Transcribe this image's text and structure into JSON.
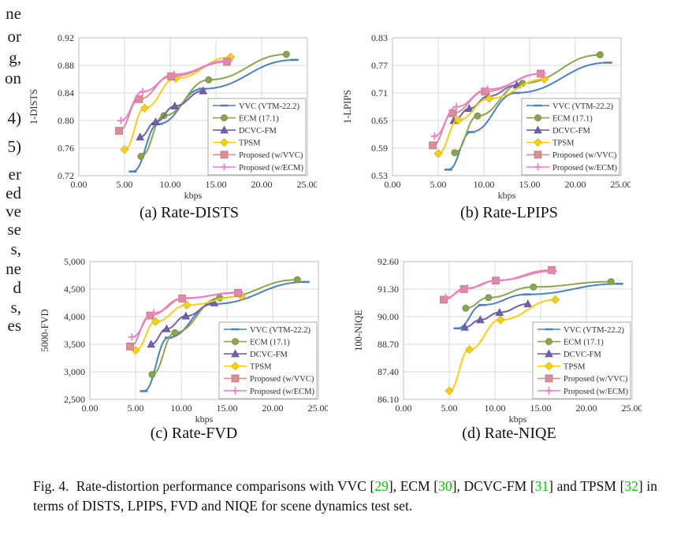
{
  "margin_fragments": [
    {
      "text": "ne",
      "y": 7
    },
    {
      "text": "or",
      "y": 36
    },
    {
      "text": "g,",
      "y": 63
    },
    {
      "text": "on",
      "y": 89
    },
    {
      "text": "4)",
      "y": 140
    },
    {
      "text": "5)",
      "y": 176
    },
    {
      "text": "er",
      "y": 211
    },
    {
      "text": "ed",
      "y": 235
    },
    {
      "text": "ve",
      "y": 258
    },
    {
      "text": "se",
      "y": 281
    },
    {
      "text": "s,",
      "y": 306
    },
    {
      "text": "ne",
      "y": 331
    },
    {
      "text": "d",
      "y": 355
    },
    {
      "text": "s,",
      "y": 380
    },
    {
      "text": "es",
      "y": 403
    }
  ],
  "figure_caption": {
    "cite_color": "#00cc00",
    "segments": [
      {
        "t": "Fig. 4.  Rate-distortion performance comparisons with VVC [",
        "c": "text"
      },
      {
        "t": "29",
        "c": "cite"
      },
      {
        "t": "], ECM [",
        "c": "text"
      },
      {
        "t": "30",
        "c": "cite"
      },
      {
        "t": "], DCVC-FM [",
        "c": "text"
      },
      {
        "t": "31",
        "c": "cite"
      },
      {
        "t": "] and TPSM [",
        "c": "text"
      },
      {
        "t": "32",
        "c": "cite"
      },
      {
        "t": "] in terms of DISTS, LPIPS, FVD and NIQE for scene dynamics test set.",
        "c": "text"
      }
    ]
  },
  "chart_data": [
    {
      "type": "line",
      "caption": "(a) Rate-DISTS",
      "xlabel": "kbps",
      "ylabel": "1-DISTS",
      "xlim": [
        0,
        25
      ],
      "ylim": [
        0.72,
        0.92
      ],
      "grid": true,
      "legend_position": "lower-right",
      "xticks": [
        {
          "v": 0,
          "l": "0.00"
        },
        {
          "v": 5,
          "l": "5.00"
        },
        {
          "v": 10,
          "l": "10.00"
        },
        {
          "v": 15,
          "l": "15.00"
        },
        {
          "v": 20,
          "l": "20.00"
        },
        {
          "v": 25,
          "l": "25.00"
        }
      ],
      "yticks": [
        {
          "v": 0.72,
          "l": "0.72"
        },
        {
          "v": 0.76,
          "l": "0.76"
        },
        {
          "v": 0.8,
          "l": "0.80"
        },
        {
          "v": 0.84,
          "l": "0.84"
        },
        {
          "v": 0.88,
          "l": "0.88"
        },
        {
          "v": 0.92,
          "l": "0.92"
        }
      ],
      "series": [
        {
          "name": "VVC (VTM-22.2)",
          "color": "#4f81bd",
          "marker": "dash",
          "marker_stroke": "#4f81bd",
          "points": [
            [
              5.9,
              0.726
            ],
            [
              8.7,
              0.795
            ],
            [
              13.5,
              0.846
            ],
            [
              23.6,
              0.888
            ]
          ]
        },
        {
          "name": "ECM (17.1)",
          "color": "#8aa44f",
          "marker": "circle",
          "marker_stroke": "#75903e",
          "points": [
            [
              6.8,
              0.748
            ],
            [
              9.3,
              0.807
            ],
            [
              14.2,
              0.859
            ],
            [
              22.7,
              0.896
            ]
          ]
        },
        {
          "name": "DCVC-FM",
          "color": "#7261a8",
          "marker": "triangle",
          "marker_stroke": "#5d4f91",
          "points": [
            [
              6.7,
              0.776
            ],
            [
              8.4,
              0.798
            ],
            [
              10.5,
              0.821
            ],
            [
              13.6,
              0.843
            ]
          ]
        },
        {
          "name": "TPSM",
          "color": "#f5d016",
          "marker": "diamond",
          "marker_stroke": "#d9b410",
          "points": [
            [
              5.0,
              0.758
            ],
            [
              7.2,
              0.818
            ],
            [
              10.6,
              0.861
            ],
            [
              16.6,
              0.892
            ]
          ]
        },
        {
          "name": "Proposed (w/VVC)",
          "color": "#d78f97",
          "marker": "square",
          "marker_stroke": "#c17f89",
          "points": [
            [
              4.4,
              0.785
            ],
            [
              6.6,
              0.831
            ],
            [
              10.1,
              0.864
            ],
            [
              16.2,
              0.885
            ]
          ]
        },
        {
          "name": "Proposed (w/ECM)",
          "color": "#ef7ec6",
          "marker": "plus",
          "marker_stroke": "#ef7ec6",
          "points": [
            [
              4.6,
              0.8
            ],
            [
              7.0,
              0.842
            ],
            [
              10.4,
              0.867
            ],
            [
              16.4,
              0.887
            ]
          ]
        }
      ]
    },
    {
      "type": "line",
      "caption": "(b) Rate-LPIPS",
      "xlabel": "kbps",
      "ylabel": "1-LPIPS",
      "xlim": [
        0,
        25
      ],
      "ylim": [
        0.53,
        0.83
      ],
      "grid": true,
      "legend_position": "lower-right",
      "xticks": [
        {
          "v": 0,
          "l": "0.00"
        },
        {
          "v": 5,
          "l": "5.00"
        },
        {
          "v": 10,
          "l": "10.00"
        },
        {
          "v": 15,
          "l": "15.00"
        },
        {
          "v": 20,
          "l": "20.00"
        },
        {
          "v": 25,
          "l": "25.00"
        }
      ],
      "yticks": [
        {
          "v": 0.53,
          "l": "0.53"
        },
        {
          "v": 0.59,
          "l": "0.59"
        },
        {
          "v": 0.65,
          "l": "0.65"
        },
        {
          "v": 0.71,
          "l": "0.71"
        },
        {
          "v": 0.77,
          "l": "0.77"
        },
        {
          "v": 0.83,
          "l": "0.83"
        }
      ],
      "series": [
        {
          "name": "VVC (VTM-22.2)",
          "color": "#4f81bd",
          "marker": "dash",
          "marker_stroke": "#4f81bd",
          "points": [
            [
              6.1,
              0.543
            ],
            [
              8.6,
              0.625
            ],
            [
              13.5,
              0.71
            ],
            [
              23.6,
              0.776
            ]
          ]
        },
        {
          "name": "ECM (17.1)",
          "color": "#8aa44f",
          "marker": "circle",
          "marker_stroke": "#75903e",
          "points": [
            [
              6.8,
              0.58
            ],
            [
              9.3,
              0.66
            ],
            [
              14.2,
              0.731
            ],
            [
              22.7,
              0.793
            ]
          ]
        },
        {
          "name": "DCVC-FM",
          "color": "#7261a8",
          "marker": "triangle",
          "marker_stroke": "#5d4f91",
          "points": [
            [
              6.7,
              0.65
            ],
            [
              8.4,
              0.676
            ],
            [
              10.5,
              0.703
            ],
            [
              13.6,
              0.727
            ]
          ]
        },
        {
          "name": "TPSM",
          "color": "#f5d016",
          "marker": "diamond",
          "marker_stroke": "#d9b410",
          "points": [
            [
              5.0,
              0.578
            ],
            [
              7.2,
              0.651
            ],
            [
              10.6,
              0.698
            ],
            [
              16.6,
              0.74
            ]
          ]
        },
        {
          "name": "Proposed (w/VVC)",
          "color": "#d78f97",
          "marker": "square",
          "marker_stroke": "#c17f89",
          "points": [
            [
              4.4,
              0.596
            ],
            [
              6.6,
              0.666
            ],
            [
              10.1,
              0.713
            ],
            [
              16.2,
              0.752
            ]
          ]
        },
        {
          "name": "Proposed (w/ECM)",
          "color": "#ef7ec6",
          "marker": "plus",
          "marker_stroke": "#ef7ec6",
          "points": [
            [
              4.6,
              0.616
            ],
            [
              7.0,
              0.68
            ],
            [
              10.4,
              0.718
            ],
            [
              16.4,
              0.752
            ]
          ]
        }
      ]
    },
    {
      "type": "line",
      "caption": "(c) Rate-FVD",
      "xlabel": "kbps",
      "ylabel": "5000-FVD",
      "xlim": [
        0,
        25
      ],
      "ylim": [
        2500,
        5000
      ],
      "grid": true,
      "legend_position": "lower-right",
      "xticks": [
        {
          "v": 0,
          "l": "0.00"
        },
        {
          "v": 5,
          "l": "5.00"
        },
        {
          "v": 10,
          "l": "10.00"
        },
        {
          "v": 15,
          "l": "15.00"
        },
        {
          "v": 20,
          "l": "20.00"
        },
        {
          "v": 25,
          "l": "25.00"
        }
      ],
      "yticks": [
        {
          "v": 2500,
          "l": "2,500"
        },
        {
          "v": 3000,
          "l": "3,000"
        },
        {
          "v": 3500,
          "l": "3,500"
        },
        {
          "v": 4000,
          "l": "4,000"
        },
        {
          "v": 4500,
          "l": "4,500"
        },
        {
          "v": 5000,
          "l": "5,000"
        }
      ],
      "series": [
        {
          "name": "VVC (VTM-22.2)",
          "color": "#4f81bd",
          "marker": "dash",
          "marker_stroke": "#4f81bd",
          "points": [
            [
              5.9,
              2650
            ],
            [
              8.6,
              3620
            ],
            [
              13.5,
              4230
            ],
            [
              23.6,
              4630
            ]
          ]
        },
        {
          "name": "ECM (17.1)",
          "color": "#8aa44f",
          "marker": "circle",
          "marker_stroke": "#75903e",
          "points": [
            [
              6.8,
              2950
            ],
            [
              9.3,
              3710
            ],
            [
              14.2,
              4340
            ],
            [
              22.7,
              4670
            ]
          ]
        },
        {
          "name": "DCVC-FM",
          "color": "#7261a8",
          "marker": "triangle",
          "marker_stroke": "#5d4f91",
          "points": [
            [
              6.7,
              3500
            ],
            [
              8.4,
              3780
            ],
            [
              10.5,
              4010
            ],
            [
              13.6,
              4250
            ]
          ]
        },
        {
          "name": "TPSM",
          "color": "#f5d016",
          "marker": "diamond",
          "marker_stroke": "#d9b410",
          "points": [
            [
              5.0,
              3390
            ],
            [
              7.2,
              3910
            ],
            [
              10.6,
              4210
            ],
            [
              16.6,
              4370
            ]
          ]
        },
        {
          "name": "Proposed (w/VVC)",
          "color": "#d78f97",
          "marker": "square",
          "marker_stroke": "#c17f89",
          "points": [
            [
              4.4,
              3460
            ],
            [
              6.6,
              4020
            ],
            [
              10.1,
              4330
            ],
            [
              16.2,
              4430
            ]
          ]
        },
        {
          "name": "Proposed (w/ECM)",
          "color": "#ef7ec6",
          "marker": "plus",
          "marker_stroke": "#ef7ec6",
          "points": [
            [
              4.6,
              3630
            ],
            [
              7.0,
              4070
            ],
            [
              10.4,
              4340
            ],
            [
              16.4,
              4440
            ]
          ]
        }
      ]
    },
    {
      "type": "line",
      "caption": "(d) Rate-NIQE",
      "xlabel": "kbps",
      "ylabel": "100-NIQE",
      "xlim": [
        0,
        25
      ],
      "ylim": [
        86.1,
        92.6
      ],
      "grid": true,
      "legend_position": "lower-right",
      "xticks": [
        {
          "v": 0,
          "l": "0.00"
        },
        {
          "v": 5,
          "l": "5.00"
        },
        {
          "v": 10,
          "l": "10.00"
        },
        {
          "v": 15,
          "l": "15.00"
        },
        {
          "v": 20,
          "l": "20.00"
        },
        {
          "v": 25,
          "l": "25.00"
        }
      ],
      "yticks": [
        {
          "v": 86.1,
          "l": "86.10"
        },
        {
          "v": 87.4,
          "l": "87.40"
        },
        {
          "v": 88.7,
          "l": "88.70"
        },
        {
          "v": 90.0,
          "l": "90.00"
        },
        {
          "v": 91.3,
          "l": "91.30"
        },
        {
          "v": 92.6,
          "l": "92.60"
        }
      ],
      "series": [
        {
          "name": "VVC (VTM-22.2)",
          "color": "#4f81bd",
          "marker": "dash",
          "marker_stroke": "#4f81bd",
          "points": [
            [
              5.9,
              89.45
            ],
            [
              8.6,
              90.55
            ],
            [
              13.5,
              91.05
            ],
            [
              23.6,
              91.55
            ]
          ]
        },
        {
          "name": "ECM (17.1)",
          "color": "#8aa44f",
          "marker": "circle",
          "marker_stroke": "#75903e",
          "points": [
            [
              6.8,
              90.4
            ],
            [
              9.3,
              90.9
            ],
            [
              14.2,
              91.4
            ],
            [
              22.7,
              91.65
            ]
          ]
        },
        {
          "name": "DCVC-FM",
          "color": "#7261a8",
          "marker": "triangle",
          "marker_stroke": "#5d4f91",
          "points": [
            [
              6.7,
              89.5
            ],
            [
              8.4,
              89.85
            ],
            [
              10.5,
              90.2
            ],
            [
              13.6,
              90.6
            ]
          ]
        },
        {
          "name": "TPSM",
          "color": "#f5d016",
          "marker": "diamond",
          "marker_stroke": "#d9b410",
          "points": [
            [
              5.0,
              86.5
            ],
            [
              7.2,
              88.45
            ],
            [
              10.6,
              89.85
            ],
            [
              16.6,
              90.8
            ]
          ]
        },
        {
          "name": "Proposed (w/VVC)",
          "color": "#d78f97",
          "marker": "square",
          "marker_stroke": "#c17f89",
          "points": [
            [
              4.4,
              90.8
            ],
            [
              6.6,
              91.3
            ],
            [
              10.1,
              91.7
            ],
            [
              16.2,
              92.2
            ]
          ]
        },
        {
          "name": "Proposed (w/ECM)",
          "color": "#ef7ec6",
          "marker": "plus",
          "marker_stroke": "#ef7ec6",
          "points": [
            [
              4.6,
              90.9
            ],
            [
              7.0,
              91.35
            ],
            [
              10.4,
              91.72
            ],
            [
              16.4,
              92.15
            ]
          ]
        }
      ]
    }
  ]
}
